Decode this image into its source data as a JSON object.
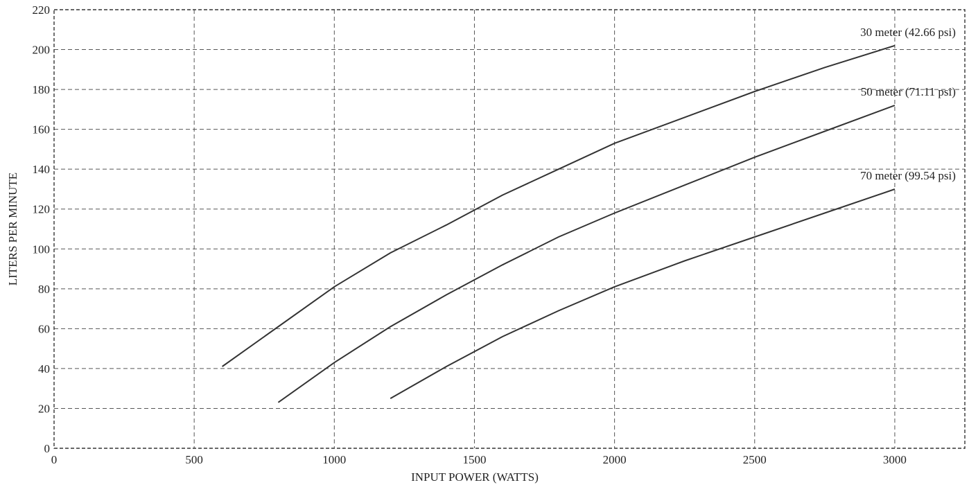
{
  "chart_data": {
    "type": "line",
    "title": "",
    "xlabel": "INPUT POWER (WATTS)",
    "ylabel": "LITERS PER MINUTE",
    "xlim": [
      0,
      3250
    ],
    "ylim": [
      0,
      220
    ],
    "xticks": [
      0,
      500,
      1000,
      1500,
      2000,
      2500,
      3000
    ],
    "yticks": [
      0,
      20,
      40,
      60,
      80,
      100,
      120,
      140,
      160,
      180,
      200,
      220
    ],
    "grid": true,
    "legend": "none",
    "line_color": "#333333",
    "series": [
      {
        "name": "30 meter (42.66 psi)",
        "x": [
          600,
          800,
          1000,
          1200,
          1400,
          1600,
          1800,
          2000,
          2250,
          2500,
          2750,
          3000
        ],
        "y": [
          41,
          61,
          81,
          98,
          112,
          127,
          140,
          153,
          166,
          179,
          191,
          202
        ]
      },
      {
        "name": "50 meter (71.11 psi)",
        "x": [
          800,
          1000,
          1200,
          1400,
          1600,
          1800,
          2000,
          2250,
          2500,
          2750,
          3000
        ],
        "y": [
          23,
          43,
          61,
          77,
          92,
          106,
          118,
          132,
          146,
          159,
          172
        ]
      },
      {
        "name": "70 meter (99.54 psi)",
        "x": [
          1200,
          1400,
          1600,
          1800,
          2000,
          2250,
          2500,
          2750,
          3000
        ],
        "y": [
          25,
          41,
          56,
          69,
          81,
          94,
          106,
          118,
          130
        ]
      }
    ]
  }
}
